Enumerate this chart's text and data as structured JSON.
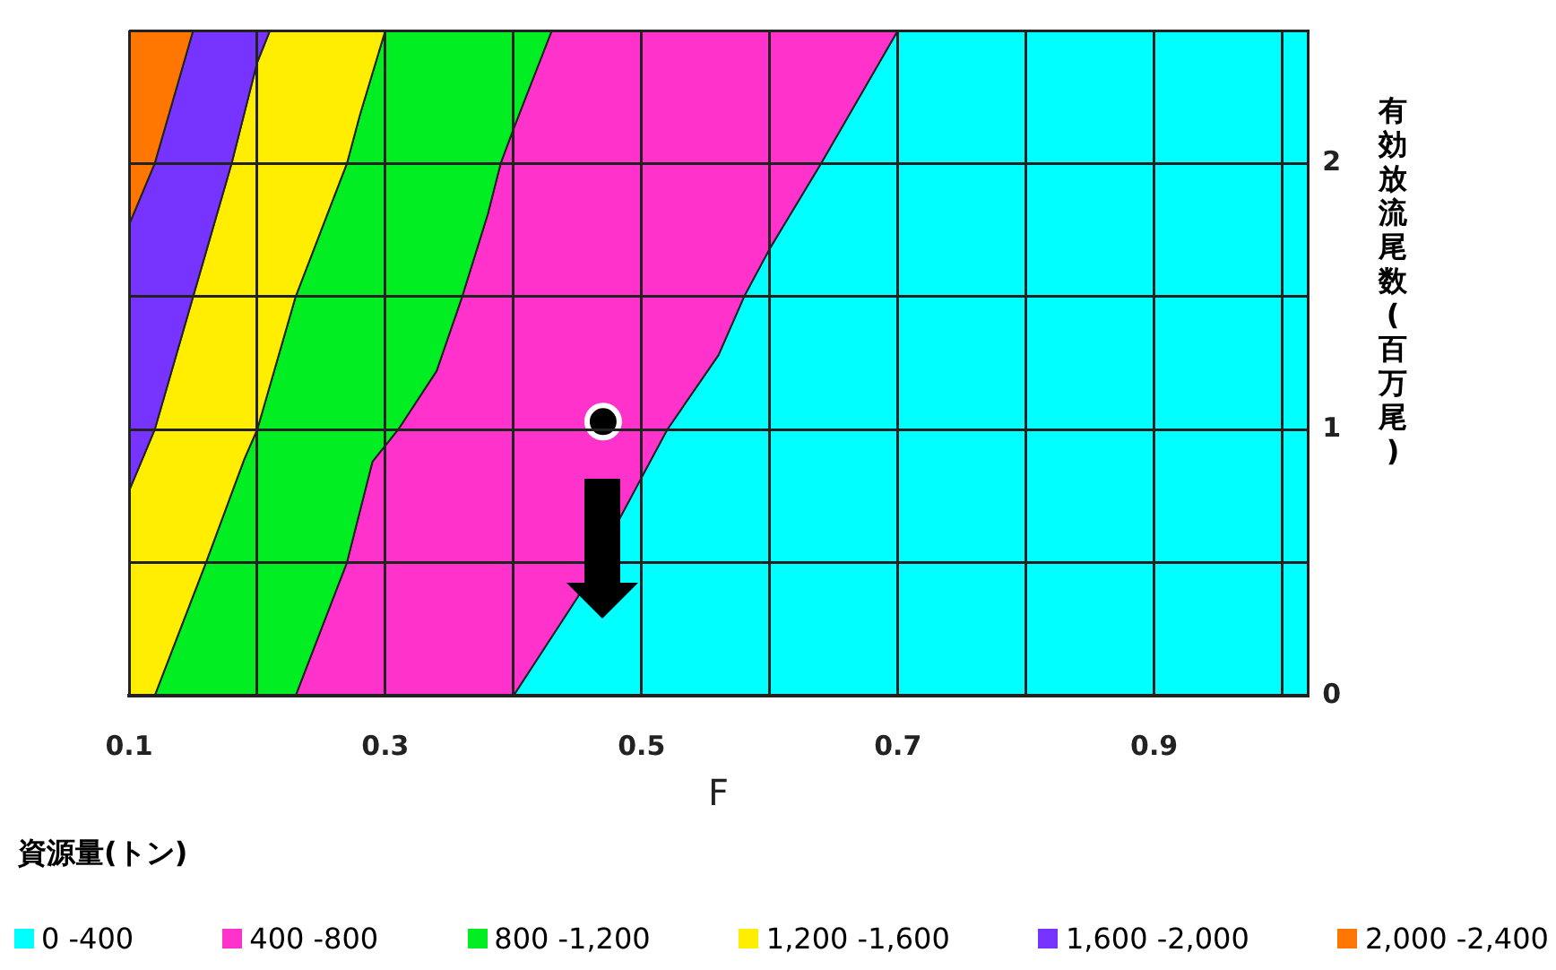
{
  "chart_data": {
    "type": "area",
    "xlabel": "F",
    "ylabel": "有効放流尾数(百万尾)",
    "legend_title": "資源量(トン)",
    "legend": "bottom",
    "grid": true,
    "xlim": [
      0.1,
      1.02
    ],
    "ylim": [
      0,
      2.5
    ],
    "xticks": [
      0.1,
      {
        "value": 0.2,
        "label": null
      },
      0.3,
      {
        "value": 0.4,
        "label": null
      },
      0.5,
      {
        "value": 0.6,
        "label": null
      },
      0.7,
      {
        "value": 0.8,
        "label": null
      },
      0.9,
      {
        "value": 1.0,
        "label": null
      }
    ],
    "yticks": [
      0,
      {
        "value": 0.5,
        "label": null
      },
      1,
      {
        "value": 1.5,
        "label": null
      },
      2,
      {
        "value": 2.5,
        "label": null
      }
    ],
    "series": [
      {
        "name": "0 -400",
        "type": "area",
        "color": "#00ffff",
        "x": [
          0.4,
          0.45,
          0.5,
          0.52,
          0.56,
          0.58,
          0.6,
          0.64,
          0.7,
          1.02,
          1.02
        ],
        "values": [
          0,
          0.37,
          0.82,
          1.0,
          1.28,
          1.5,
          1.68,
          2.0,
          2.5,
          2.5,
          0
        ]
      },
      {
        "name": "400 -800",
        "type": "area",
        "color": "#ff33cc",
        "x": [
          0.23,
          0.27,
          0.29,
          0.31,
          0.34,
          0.36,
          0.38,
          0.39,
          0.4,
          0.43,
          0.7,
          0.64,
          0.6,
          0.58,
          0.56,
          0.52,
          0.5,
          0.45,
          0.4
        ],
        "values": [
          0,
          0.5,
          0.88,
          1.0,
          1.22,
          1.5,
          1.81,
          2.0,
          2.13,
          2.5,
          2.5,
          2.0,
          1.68,
          1.5,
          1.28,
          1.0,
          0.82,
          0.37,
          0
        ]
      },
      {
        "name": "800 -1,200",
        "type": "area",
        "color": "#00ee22",
        "x": [
          0.12,
          0.16,
          0.19,
          0.2,
          0.23,
          0.27,
          0.28,
          0.3,
          0.43,
          0.4,
          0.39,
          0.38,
          0.36,
          0.34,
          0.31,
          0.29,
          0.27,
          0.23
        ],
        "values": [
          0,
          0.5,
          0.89,
          1.0,
          1.5,
          2.0,
          2.18,
          2.5,
          2.5,
          2.13,
          2.0,
          1.81,
          1.5,
          1.22,
          1.0,
          0.88,
          0.5,
          0
        ]
      },
      {
        "name": "1,200 -1,600",
        "type": "area",
        "color": "#ffee00",
        "x": [
          0.1,
          0.12,
          0.16,
          0.19,
          0.2,
          0.23,
          0.27,
          0.28,
          0.3,
          0.21,
          0.2,
          0.18,
          0.15,
          0.12,
          0.1
        ],
        "values": [
          0,
          0,
          0.5,
          0.89,
          1.0,
          1.5,
          2.0,
          2.18,
          2.5,
          2.5,
          2.38,
          2.0,
          1.5,
          1.0,
          0.77
        ]
      },
      {
        "name": "1,600 -2,000",
        "type": "area",
        "color": "#7733ff",
        "x": [
          0.1,
          0.12,
          0.15,
          0.18,
          0.2,
          0.21,
          0.15,
          0.12,
          0.1
        ],
        "values": [
          0.77,
          1.0,
          1.5,
          2.0,
          2.38,
          2.5,
          2.5,
          2.0,
          1.77
        ]
      },
      {
        "name": "2,000 -2,400",
        "type": "area",
        "color": "#ff7700",
        "x": [
          0.1,
          0.12,
          0.15,
          0.1
        ],
        "values": [
          1.77,
          2.0,
          2.5,
          2.5
        ]
      },
      {
        "type": "scatter",
        "marker": "circle",
        "color": "#000000",
        "x": [
          0.47
        ],
        "values": [
          1.03
        ]
      }
    ]
  }
}
